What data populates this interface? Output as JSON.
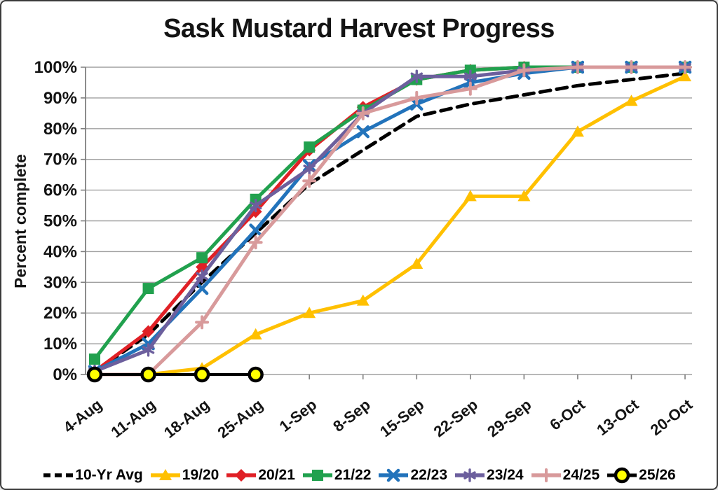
{
  "chart_data": {
    "type": "line",
    "title": "Sask Mustard Harvest Progress",
    "xlabel": "",
    "ylabel": "Percent complete",
    "ylim": [
      0,
      100
    ],
    "y_tick_step": 10,
    "y_tick_suffix": "%",
    "grid": true,
    "legend_position": "bottom",
    "categories": [
      "4-Aug",
      "11-Aug",
      "18-Aug",
      "25-Aug",
      "1-Sep",
      "8-Sep",
      "15-Sep",
      "22-Sep",
      "29-Sep",
      "6-Oct",
      "13-Oct",
      "20-Oct"
    ],
    "series": [
      {
        "name": "10-Yr Avg",
        "color": "#000000",
        "dashed": true,
        "marker": "none",
        "values": [
          1,
          13,
          30,
          46,
          62,
          73,
          84,
          88,
          91,
          94,
          96,
          98
        ]
      },
      {
        "name": "19/20",
        "color": "#ffc000",
        "dashed": false,
        "marker": "triangle",
        "values": [
          0,
          0,
          2,
          13,
          20,
          24,
          36,
          58,
          58,
          79,
          89,
          97
        ]
      },
      {
        "name": "20/21",
        "color": "#e02026",
        "dashed": false,
        "marker": "diamond",
        "values": [
          1,
          14,
          35,
          53,
          73,
          87,
          96,
          99,
          100,
          100,
          100,
          100
        ]
      },
      {
        "name": "21/22",
        "color": "#21a14e",
        "dashed": false,
        "marker": "square",
        "values": [
          5,
          28,
          38,
          57,
          74,
          86,
          96,
          99,
          100,
          100,
          100,
          100
        ]
      },
      {
        "name": "22/23",
        "color": "#2273bb",
        "dashed": false,
        "marker": "x",
        "values": [
          1,
          10,
          28,
          47,
          68,
          79,
          88,
          95,
          98,
          100,
          100,
          100
        ]
      },
      {
        "name": "23/24",
        "color": "#6c5f9d",
        "dashed": false,
        "marker": "asterisk",
        "values": [
          1,
          8,
          32,
          55,
          67,
          85,
          97,
          97,
          99,
          100,
          100,
          100
        ]
      },
      {
        "name": "24/25",
        "color": "#d89a9b",
        "dashed": false,
        "marker": "plus",
        "values": [
          0,
          0,
          17,
          43,
          63,
          85,
          90,
          93,
          99,
          100,
          100,
          100
        ]
      },
      {
        "name": "25/26",
        "color": "#000000",
        "dashed": false,
        "marker": "circle",
        "marker_fill": "#ffff00",
        "values": [
          0,
          0,
          0,
          0,
          null,
          null,
          null,
          null,
          null,
          null,
          null,
          null
        ]
      }
    ],
    "colors": {
      "gridline": "#a0a0a0",
      "axis": "#7f7f7f",
      "text": "#141414"
    }
  }
}
